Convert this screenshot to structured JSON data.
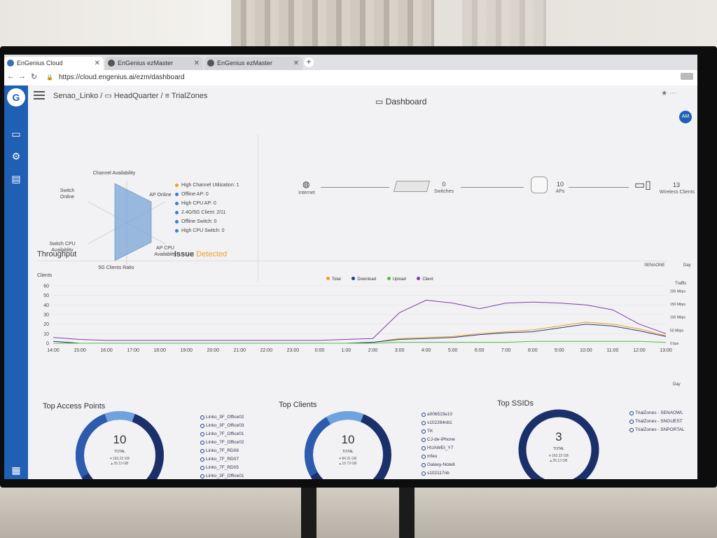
{
  "browser": {
    "tabs": [
      {
        "label": "EnGenius Cloud",
        "active": true
      },
      {
        "label": "EnGenius ezMaster",
        "active": false
      },
      {
        "label": "EnGenius ezMaster",
        "active": false
      }
    ],
    "url": "https://cloud.engenius.ai/ezm/dashboard"
  },
  "header": {
    "breadcrumb": "Senao_Linko / ▭ HeadQuarter / ≡ TrialZones",
    "title": "Dashboard",
    "avatar": "AM"
  },
  "radar": {
    "channel_availability": "Channel Availability",
    "switch_online": "Switch Online",
    "ap_online": "AP Online",
    "switch_cpu": "Switch CPU Availablity",
    "ap_cpu": "AP CPU Availablity",
    "clients_ratio": "5G Clients Ratio"
  },
  "issues": {
    "items": [
      {
        "label": "High Channel Utilization: 1",
        "color": "#f0a020"
      },
      {
        "label": "Offline AP: 0",
        "color": "#3b7dd8"
      },
      {
        "label": "High CPU AP: 0",
        "color": "#3b7dd8"
      },
      {
        "label": "2.4G/5G Client: 2/11",
        "color": "#3b7dd8"
      },
      {
        "label": "Offline Switch: 0",
        "color": "#3b7dd8"
      },
      {
        "label": "High CPU Switch: 0",
        "color": "#3b7dd8"
      }
    ],
    "title": "Issue",
    "status": "Detected"
  },
  "topology": {
    "internet": "Internet",
    "switches_count": "0",
    "switches": "Switches",
    "aps_count": "10",
    "aps": "APs",
    "wireless_count": "13",
    "wireless": "Wireless Clients"
  },
  "throughput": {
    "title": "Throughput",
    "selector_1": "SENAONE",
    "selector_2": "Day",
    "left_axis": "Clients",
    "right_axis": "Traffic",
    "legend": [
      {
        "name": "Total",
        "color": "#f0a020"
      },
      {
        "name": "Download",
        "color": "#1f3f80"
      },
      {
        "name": "Upload",
        "color": "#58b84a"
      },
      {
        "name": "Client",
        "color": "#7b3fa0"
      }
    ]
  },
  "chart_data": {
    "type": "line",
    "x": [
      "14:00",
      "15:00",
      "16:00",
      "17:00",
      "18:00",
      "19:00",
      "20:00",
      "21:00",
      "22:00",
      "23:00",
      "0:00",
      "1:00",
      "2:00",
      "3:00",
      "4:00",
      "5:00",
      "6:00",
      "7:00",
      "8:00",
      "9:00",
      "10:00",
      "11:00",
      "12:00",
      "13:00"
    ],
    "ylabel": "Clients",
    "ylim": [
      0,
      60
    ],
    "yticks": [
      0,
      10,
      20,
      30,
      40,
      50,
      60
    ],
    "right_ticks": [
      "0 bps",
      "50 Mbps",
      "100 Mbps",
      "150 Mbps",
      "200 Mbps"
    ],
    "right_label": "Traffic",
    "series": [
      {
        "name": "Client",
        "values": [
          6,
          4,
          3,
          3,
          3,
          3,
          3,
          3,
          3,
          3,
          3,
          4,
          5,
          32,
          45,
          42,
          36,
          42,
          43,
          42,
          40,
          35,
          20,
          10
        ]
      },
      {
        "name": "Total",
        "values": [
          2,
          0,
          0,
          0,
          0,
          0,
          0,
          0,
          0,
          0,
          0,
          0,
          1,
          5,
          6,
          7,
          10,
          12,
          14,
          18,
          22,
          20,
          15,
          8
        ]
      },
      {
        "name": "Download",
        "values": [
          2,
          0,
          0,
          0,
          0,
          0,
          0,
          0,
          0,
          0,
          0,
          0,
          1,
          4,
          5,
          6,
          9,
          11,
          12,
          16,
          20,
          18,
          13,
          7
        ]
      },
      {
        "name": "Upload",
        "values": [
          0,
          0,
          0,
          0,
          0,
          0,
          0,
          0,
          0,
          0,
          0,
          0,
          0,
          1,
          1,
          1,
          1,
          1,
          2,
          2,
          2,
          2,
          2,
          1
        ]
      }
    ]
  },
  "top_aps": {
    "title": "Top Access Points",
    "selector": "Day",
    "total": "10",
    "total_label": "TOTAL",
    "stat_down": "▾ 163.22 GB",
    "stat_up": "▴ 25.13 GB",
    "items": [
      "Linko_3F_Office02",
      "Linko_3F_Office03",
      "Linko_7F_Office01",
      "Linko_7F_Office02",
      "Linko_7F_RD06",
      "Linko_7F_RD07",
      "Linko_7F_RD05",
      "Linko_3F_Office01"
    ]
  },
  "top_clients": {
    "title": "Top Clients",
    "total": "10",
    "total_label": "TOTAL",
    "stat_down": "▾ 84.31 GB",
    "stat_up": "▴ 10.73 GB",
    "items": [
      "a006515e10",
      "s102264nb1",
      "TK",
      "CJ-de-iPhone",
      "HUAWEI_Y7",
      "mfeu",
      "Galaxy-Note8",
      "s102117nb"
    ]
  },
  "top_ssids": {
    "title": "Top SSIDs",
    "total": "3",
    "total_label": "TOTAL",
    "stat_down": "▾ 163.22 GB",
    "stat_up": "▴ 25.13 GB",
    "items": [
      "TrialZones - SENAOWL",
      "TrialZones - SNGUEST",
      "TrialZones - SNPORTAL"
    ]
  }
}
